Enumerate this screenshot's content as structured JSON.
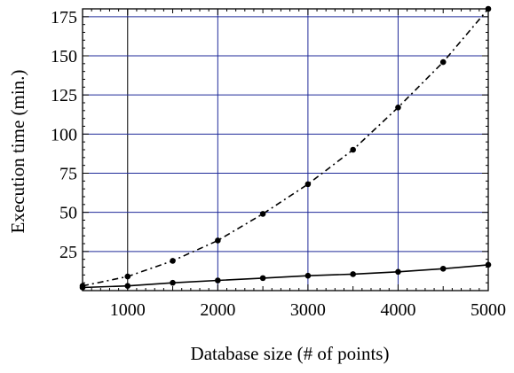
{
  "chart_data": {
    "type": "line",
    "title": "",
    "xlabel": "Database size (# of points)",
    "ylabel": "Execution time (min.)",
    "xlim": [
      500,
      5000
    ],
    "ylim": [
      0,
      180
    ],
    "x_ticks": [
      1000,
      2000,
      3000,
      4000,
      5000
    ],
    "y_ticks": [
      25,
      50,
      75,
      100,
      125,
      150,
      175
    ],
    "grid": true,
    "grid_color": "#1f2a99",
    "legend": "none",
    "series": [
      {
        "style": "dash-dot",
        "color": "#000000",
        "x": [
          500,
          1000,
          1500,
          2000,
          2500,
          3000,
          3500,
          4000,
          4500,
          5000
        ],
        "y": [
          3,
          9,
          19,
          32,
          49,
          68,
          90,
          117,
          146,
          180
        ]
      },
      {
        "style": "solid",
        "color": "#000000",
        "x": [
          500,
          1000,
          1500,
          2000,
          2500,
          3000,
          3500,
          4000,
          4500,
          5000
        ],
        "y": [
          2,
          3,
          5,
          6.5,
          8,
          9.5,
          10.5,
          12,
          14,
          16.5
        ]
      }
    ]
  }
}
